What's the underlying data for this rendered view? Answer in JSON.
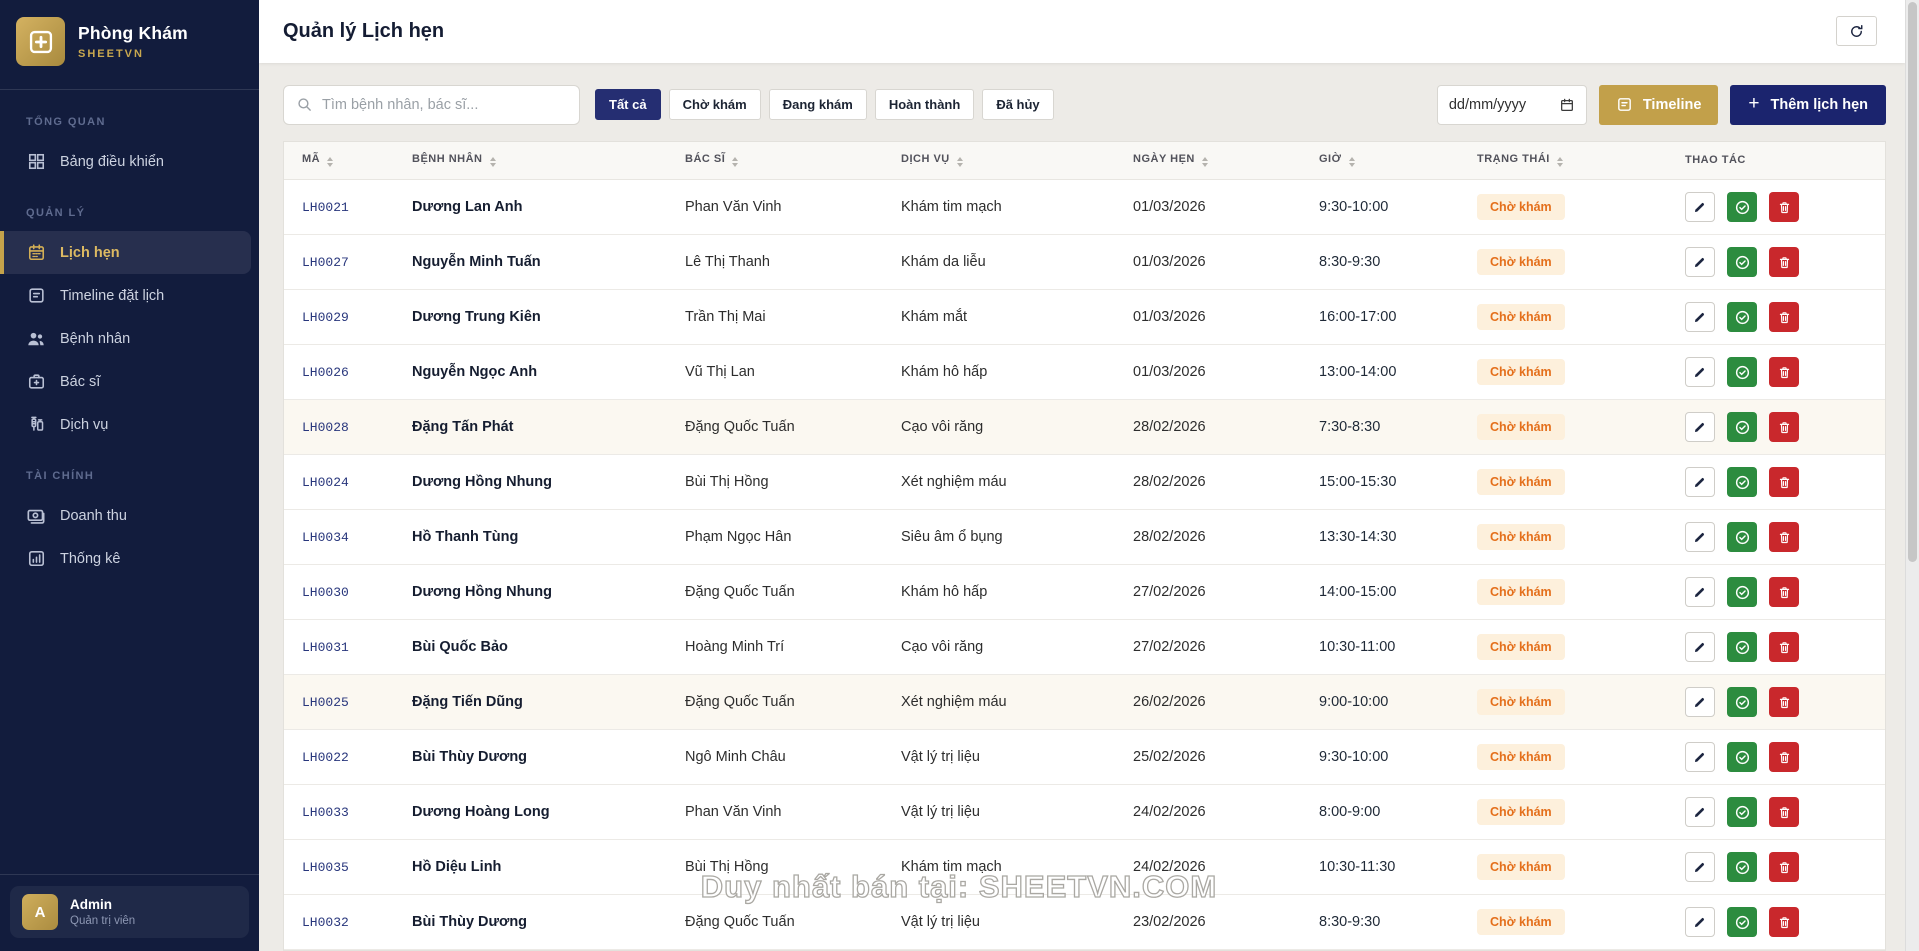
{
  "sidebar": {
    "logo": {
      "title": "Phòng Khám",
      "subtitle": "SHEETVN"
    },
    "sections": [
      {
        "label": "TỔNG QUAN",
        "items": [
          {
            "id": "dashboard",
            "icon": "dashboard-icon",
            "label": "Bảng điều khiển",
            "active": false
          }
        ]
      },
      {
        "label": "QUẢN LÝ",
        "items": [
          {
            "id": "appointments",
            "icon": "calendar-icon",
            "label": "Lịch hẹn",
            "active": true
          },
          {
            "id": "timeline",
            "icon": "timeline-icon",
            "label": "Timeline đặt lịch",
            "active": false
          },
          {
            "id": "patients",
            "icon": "patients-icon",
            "label": "Bệnh nhân",
            "active": false
          },
          {
            "id": "doctors",
            "icon": "doctor-icon",
            "label": "Bác sĩ",
            "active": false
          },
          {
            "id": "services",
            "icon": "services-icon",
            "label": "Dịch vụ",
            "active": false
          }
        ]
      },
      {
        "label": "TÀI CHÍNH",
        "items": [
          {
            "id": "revenue",
            "icon": "revenue-icon",
            "label": "Doanh thu",
            "active": false
          },
          {
            "id": "statistics",
            "icon": "stats-icon",
            "label": "Thống kê",
            "active": false
          }
        ]
      }
    ],
    "profile": {
      "avatar": "A",
      "name": "Admin",
      "role": "Quản trị viên"
    }
  },
  "header": {
    "title": "Quản lý Lịch hẹn"
  },
  "toolbar": {
    "search_placeholder": "Tìm bệnh nhân, bác sĩ...",
    "filters": [
      {
        "id": "all",
        "label": "Tất cả",
        "active": true
      },
      {
        "id": "cho-kham",
        "label": "Chờ khám",
        "active": false
      },
      {
        "id": "dang-kham",
        "label": "Đang khám",
        "active": false
      },
      {
        "id": "hoan-thanh",
        "label": "Hoàn thành",
        "active": false
      },
      {
        "id": "da-huy",
        "label": "Đã hủy",
        "active": false
      }
    ],
    "date_placeholder": "dd/mm/yyyy",
    "timeline_label": "Timeline",
    "add_plus": "+",
    "add_label": "Thêm lịch hẹn"
  },
  "table": {
    "columns": [
      {
        "id": "ma",
        "label": "MÃ",
        "sortable": true
      },
      {
        "id": "benh-nhan",
        "label": "BỆNH NHÂN",
        "sortable": true
      },
      {
        "id": "bac-si",
        "label": "BÁC SĨ",
        "sortable": true
      },
      {
        "id": "dich-vu",
        "label": "DỊCH VỤ",
        "sortable": true
      },
      {
        "id": "ngay-hen",
        "label": "NGÀY HẸN",
        "sortable": true
      },
      {
        "id": "gio",
        "label": "GIỜ",
        "sortable": true
      },
      {
        "id": "trang-thai",
        "label": "TRẠNG THÁI",
        "sortable": true
      },
      {
        "id": "thao-tac",
        "label": "THAO TÁC",
        "sortable": false
      }
    ],
    "rows": [
      {
        "code": "LH0021",
        "patient": "Dương Lan Anh",
        "doctor": "Phan Văn Vinh",
        "service": "Khám tim mạch",
        "date": "01/03/2026",
        "time": "9:30-10:00",
        "status": "Chờ khám",
        "tinted": false
      },
      {
        "code": "LH0027",
        "patient": "Nguyễn Minh Tuấn",
        "doctor": "Lê Thị Thanh",
        "service": "Khám da liễu",
        "date": "01/03/2026",
        "time": "8:30-9:30",
        "status": "Chờ khám",
        "tinted": false
      },
      {
        "code": "LH0029",
        "patient": "Dương Trung Kiên",
        "doctor": "Trần Thị Mai",
        "service": "Khám mắt",
        "date": "01/03/2026",
        "time": "16:00-17:00",
        "status": "Chờ khám",
        "tinted": false
      },
      {
        "code": "LH0026",
        "patient": "Nguyễn Ngọc Anh",
        "doctor": "Vũ Thị Lan",
        "service": "Khám hô hấp",
        "date": "01/03/2026",
        "time": "13:00-14:00",
        "status": "Chờ khám",
        "tinted": false
      },
      {
        "code": "LH0028",
        "patient": "Đặng Tấn Phát",
        "doctor": "Đặng Quốc Tuấn",
        "service": "Cạo vôi răng",
        "date": "28/02/2026",
        "time": "7:30-8:30",
        "status": "Chờ khám",
        "tinted": true
      },
      {
        "code": "LH0024",
        "patient": "Dương Hồng Nhung",
        "doctor": "Bùi Thị Hồng",
        "service": "Xét nghiệm máu",
        "date": "28/02/2026",
        "time": "15:00-15:30",
        "status": "Chờ khám",
        "tinted": false
      },
      {
        "code": "LH0034",
        "patient": "Hồ Thanh Tùng",
        "doctor": "Phạm Ngọc Hân",
        "service": "Siêu âm ổ bụng",
        "date": "28/02/2026",
        "time": "13:30-14:30",
        "status": "Chờ khám",
        "tinted": false
      },
      {
        "code": "LH0030",
        "patient": "Dương Hồng Nhung",
        "doctor": "Đặng Quốc Tuấn",
        "service": "Khám hô hấp",
        "date": "27/02/2026",
        "time": "14:00-15:00",
        "status": "Chờ khám",
        "tinted": false
      },
      {
        "code": "LH0031",
        "patient": "Bùi Quốc Bảo",
        "doctor": "Hoàng Minh Trí",
        "service": "Cạo vôi răng",
        "date": "27/02/2026",
        "time": "10:30-11:00",
        "status": "Chờ khám",
        "tinted": false
      },
      {
        "code": "LH0025",
        "patient": "Đặng Tiến Dũng",
        "doctor": "Đặng Quốc Tuấn",
        "service": "Xét nghiệm máu",
        "date": "26/02/2026",
        "time": "9:00-10:00",
        "status": "Chờ khám",
        "tinted": true
      },
      {
        "code": "LH0022",
        "patient": "Bùi Thùy Dương",
        "doctor": "Ngô Minh Châu",
        "service": "Vật lý trị liệu",
        "date": "25/02/2026",
        "time": "9:30-10:00",
        "status": "Chờ khám",
        "tinted": false
      },
      {
        "code": "LH0033",
        "patient": "Dương Hoàng Long",
        "doctor": "Phan Văn Vinh",
        "service": "Vật lý trị liệu",
        "date": "24/02/2026",
        "time": "8:00-9:00",
        "status": "Chờ khám",
        "tinted": false
      },
      {
        "code": "LH0035",
        "patient": "Hồ Diệu Linh",
        "doctor": "Bùi Thị Hồng",
        "service": "Khám tim mạch",
        "date": "24/02/2026",
        "time": "10:30-11:30",
        "status": "Chờ khám",
        "tinted": false
      },
      {
        "code": "LH0032",
        "patient": "Bùi Thùy Dương",
        "doctor": "Đặng Quốc Tuấn",
        "service": "Vật lý trị liệu",
        "date": "23/02/2026",
        "time": "8:30-9:30",
        "status": "Chờ khám",
        "tinted": false
      }
    ]
  },
  "watermark": "Duy nhất bán tại: SHEETVN.COM",
  "colors": {
    "sidebar_navy": "#121c3d",
    "accent_gold": "#c2a04a",
    "primary_navy": "#1b246e",
    "status_pending_text": "#e46f1b",
    "status_pending_bg": "#fdf0dc",
    "confirm_green": "#2c8c3f",
    "delete_red": "#c9282c"
  }
}
